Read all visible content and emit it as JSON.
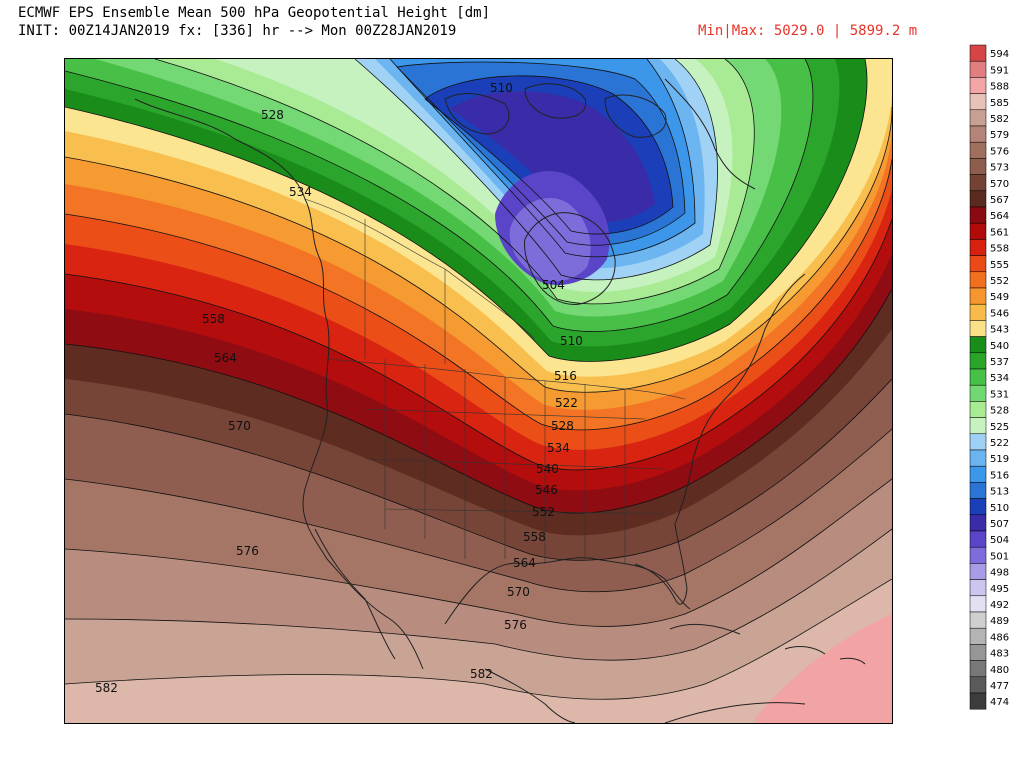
{
  "header": {
    "title": "ECMWF EPS Ensemble Mean 500 hPa Geopotential Height [dm]",
    "init_line": "INIT: 00Z14JAN2019 fx: [336] hr --> Mon 00Z28JAN2019",
    "minmax": "Min|Max: 5029.0 | 5899.2 m"
  },
  "colorbar": {
    "levels": [
      "594",
      "591",
      "588",
      "585",
      "582",
      "579",
      "576",
      "573",
      "570",
      "567",
      "564",
      "561",
      "558",
      "555",
      "552",
      "549",
      "546",
      "543",
      "540",
      "537",
      "534",
      "531",
      "528",
      "525",
      "522",
      "519",
      "516",
      "513",
      "510",
      "507",
      "504",
      "501",
      "498",
      "495",
      "492",
      "489",
      "486",
      "483",
      "480",
      "477",
      "474"
    ],
    "colors": [
      "#d64545",
      "#e07f7f",
      "#f2a6a6",
      "#e6c3b6",
      "#c7a093",
      "#b38477",
      "#a0705f",
      "#8d5d4d",
      "#734234",
      "#5a2a1f",
      "#8a0a12",
      "#b00a0a",
      "#d62010",
      "#ea4a18",
      "#f07020",
      "#f5962e",
      "#f8ba48",
      "#fbe08a",
      "#1a8c1a",
      "#2aa52a",
      "#46c046",
      "#72d872",
      "#a7eb93",
      "#c6f2c0",
      "#9fd0f5",
      "#6cb4f0",
      "#3c96ea",
      "#2a74d6",
      "#1b3fb8",
      "#3a2ca8",
      "#5a45c8",
      "#7d6ddb",
      "#a79ce6",
      "#cbc5ef",
      "#e3e0f2",
      "#cfcfcf",
      "#b4b4b4",
      "#969696",
      "#787878",
      "#5a5a5a",
      "#3c3c3c"
    ]
  },
  "contour_labels": [
    {
      "id": "label-528-nw",
      "text": "528"
    },
    {
      "id": "label-534-nw",
      "text": "534"
    },
    {
      "id": "label-510-north",
      "text": "510"
    },
    {
      "id": "label-558-pacific",
      "text": "558"
    },
    {
      "id": "label-564-pacific",
      "text": "564"
    },
    {
      "id": "label-504-hudson",
      "text": "504"
    },
    {
      "id": "label-510-ontario",
      "text": "510"
    },
    {
      "id": "label-516-great-lakes",
      "text": "516"
    },
    {
      "id": "label-522-great-lakes",
      "text": "522"
    },
    {
      "id": "label-528-midwest",
      "text": "528"
    },
    {
      "id": "label-534-midwest",
      "text": "534"
    },
    {
      "id": "label-540-plains",
      "text": "540"
    },
    {
      "id": "label-546-plains",
      "text": "546"
    },
    {
      "id": "label-552-south",
      "text": "552"
    },
    {
      "id": "label-558-south",
      "text": "558"
    },
    {
      "id": "label-564-gulf",
      "text": "564"
    },
    {
      "id": "label-570-pacific",
      "text": "570"
    },
    {
      "id": "label-570-gulf",
      "text": "570"
    },
    {
      "id": "label-576-pacific",
      "text": "576"
    },
    {
      "id": "label-576-mexico",
      "text": "576"
    },
    {
      "id": "label-582-pacific",
      "text": "582"
    },
    {
      "id": "label-582-mexico",
      "text": "582"
    }
  ]
}
